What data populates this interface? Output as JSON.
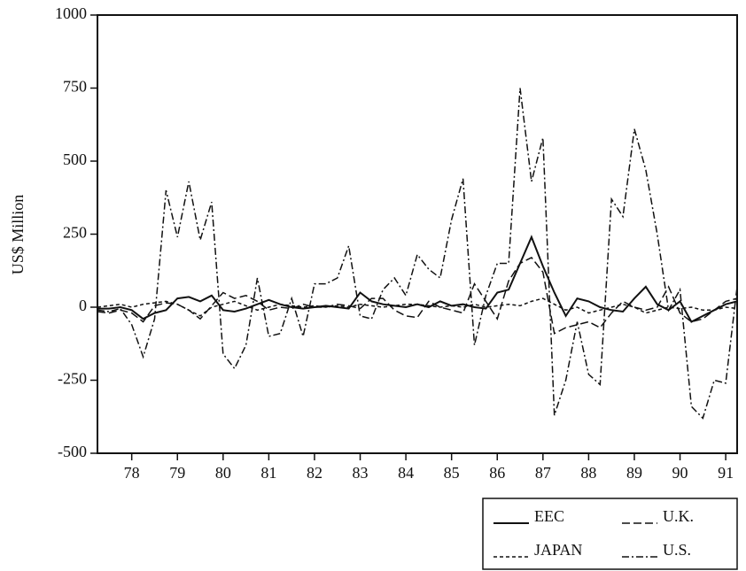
{
  "chart_data": {
    "type": "line",
    "y_label": "US$ Million",
    "x": [
      1977.75,
      1978,
      1978.25,
      1978.5,
      1978.75,
      1979,
      1979.25,
      1979.5,
      1979.75,
      1980,
      1980.25,
      1980.5,
      1980.75,
      1981,
      1981.25,
      1981.5,
      1981.75,
      1982,
      1982.25,
      1982.5,
      1982.75,
      1983,
      1983.25,
      1983.5,
      1983.75,
      1984,
      1984.25,
      1984.5,
      1984.75,
      1985,
      1985.25,
      1985.5,
      1985.75,
      1986,
      1986.25,
      1986.5,
      1986.75,
      1987,
      1987.25,
      1987.5,
      1987.75,
      1988,
      1988.25,
      1988.5,
      1988.75,
      1989,
      1989.25,
      1989.5,
      1989.75,
      1990,
      1990.25,
      1990.5,
      1990.75,
      1991,
      1991.25,
      1991.5,
      1991.75
    ],
    "series": [
      {
        "name": "EEC",
        "color": "#111111",
        "linestyle": "solid",
        "values": [
          -5,
          -5,
          0,
          -10,
          -40,
          -20,
          -10,
          30,
          35,
          20,
          40,
          -10,
          -15,
          -5,
          10,
          25,
          10,
          0,
          -5,
          0,
          5,
          0,
          -5,
          50,
          20,
          10,
          5,
          0,
          10,
          0,
          20,
          5,
          10,
          0,
          -5,
          50,
          60,
          150,
          240,
          140,
          50,
          -30,
          30,
          20,
          0,
          -10,
          -15,
          30,
          70,
          10,
          -10,
          20,
          -50,
          -30,
          -10,
          10,
          20
        ]
      },
      {
        "name": "U.K.",
        "color": "#111111",
        "linestyle": "longdash",
        "values": [
          -15,
          -20,
          -10,
          -20,
          -50,
          5,
          15,
          10,
          -10,
          -40,
          5,
          50,
          30,
          40,
          20,
          -10,
          0,
          -5,
          10,
          0,
          0,
          10,
          5,
          -5,
          30,
          30,
          -10,
          -30,
          -35,
          20,
          0,
          -10,
          -20,
          80,
          20,
          -40,
          90,
          150,
          170,
          120,
          -90,
          -70,
          -60,
          -50,
          -70,
          -20,
          20,
          0,
          -10,
          0,
          70,
          -20,
          -50,
          -40,
          -10,
          20,
          30
        ]
      },
      {
        "name": "JAPAN",
        "color": "#111111",
        "linestyle": "shortdash",
        "values": [
          0,
          5,
          10,
          0,
          10,
          15,
          20,
          10,
          -10,
          -30,
          0,
          10,
          20,
          5,
          -10,
          0,
          10,
          5,
          0,
          5,
          0,
          5,
          0,
          10,
          5,
          0,
          5,
          10,
          10,
          5,
          0,
          5,
          0,
          10,
          0,
          5,
          10,
          5,
          20,
          30,
          10,
          -10,
          0,
          -20,
          -10,
          0,
          10,
          0,
          -20,
          -10,
          0,
          -5,
          0,
          -10,
          -10,
          0,
          -5
        ]
      },
      {
        "name": "U.S.",
        "color": "#111111",
        "linestyle": "dashdot",
        "values": [
          -10,
          -15,
          -5,
          -60,
          -170,
          -40,
          400,
          240,
          430,
          230,
          360,
          -160,
          -210,
          -130,
          100,
          -100,
          -90,
          30,
          -100,
          80,
          80,
          100,
          210,
          -30,
          -40,
          60,
          100,
          40,
          180,
          130,
          100,
          300,
          440,
          -130,
          40,
          150,
          150,
          750,
          430,
          580,
          -370,
          -250,
          -50,
          -230,
          -265,
          370,
          310,
          610,
          470,
          250,
          -10,
          60,
          -340,
          -380,
          -250,
          -260,
          70
        ]
      }
    ],
    "xlim": [
      1977.75,
      1991.75
    ],
    "xticks": [
      {
        "value": 1978.5,
        "label": "78"
      },
      {
        "value": 1979.5,
        "label": "79"
      },
      {
        "value": 1980.5,
        "label": "80"
      },
      {
        "value": 1981.5,
        "label": "81"
      },
      {
        "value": 1982.5,
        "label": "82"
      },
      {
        "value": 1983.5,
        "label": "83"
      },
      {
        "value": 1984.5,
        "label": "84"
      },
      {
        "value": 1985.5,
        "label": "85"
      },
      {
        "value": 1986.5,
        "label": "86"
      },
      {
        "value": 1987.5,
        "label": "87"
      },
      {
        "value": 1988.5,
        "label": "88"
      },
      {
        "value": 1989.5,
        "label": "89"
      },
      {
        "value": 1990.5,
        "label": "90"
      },
      {
        "value": 1991.5,
        "label": "91"
      }
    ],
    "ylim": [
      -500,
      1000
    ],
    "yticks": [
      -500,
      -250,
      0,
      250,
      500,
      750,
      1000
    ],
    "grid": false,
    "legend": "below-right"
  }
}
